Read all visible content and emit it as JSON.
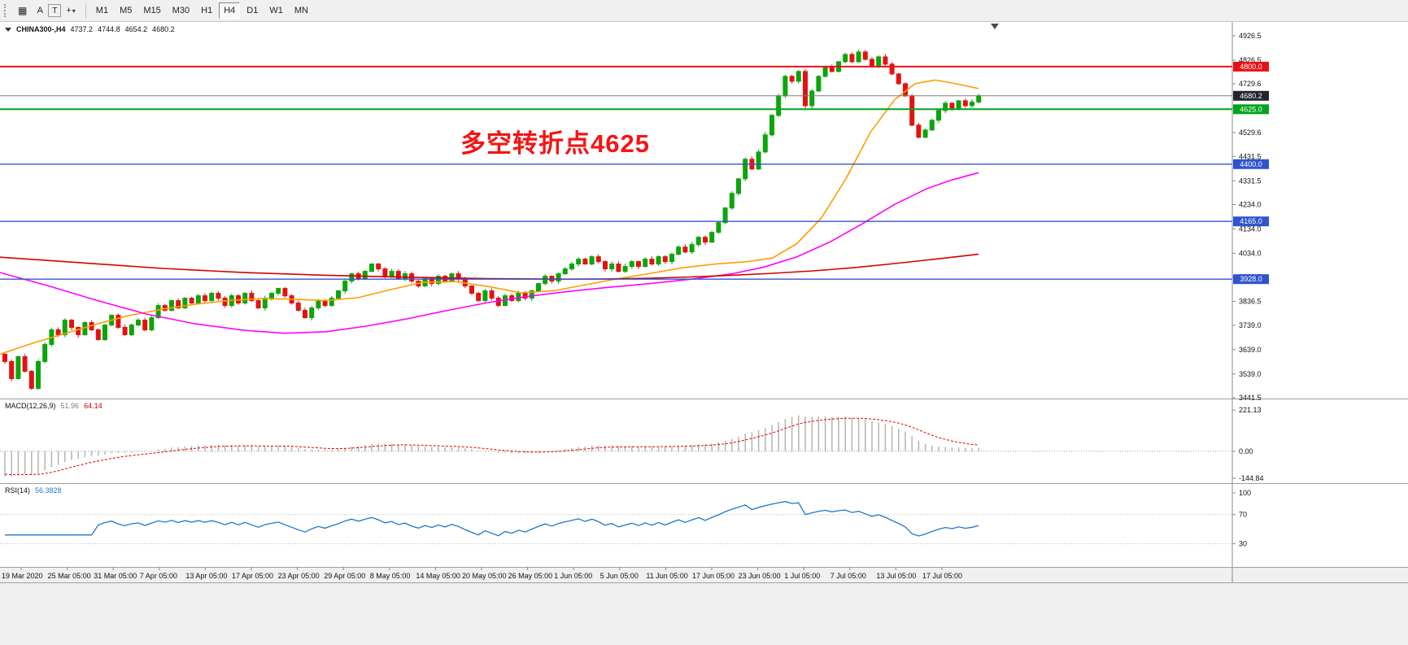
{
  "toolbar": {
    "tools": {
      "charts": "▦",
      "arrow": "A",
      "text": "T",
      "crosshair": "+",
      "dropdown": "▾"
    },
    "timeframes": [
      "M1",
      "M5",
      "M15",
      "M30",
      "H1",
      "H4",
      "D1",
      "W1",
      "MN"
    ],
    "selected_timeframe": "H4"
  },
  "header": {
    "symbol": "CHINA300-,H4",
    "open": "4737.2",
    "high": "4744.8",
    "low": "4654.2",
    "close": "4680.2"
  },
  "annotation": {
    "text": "多空转折点4625",
    "color": "#f51414"
  },
  "indicators": {
    "macd": {
      "label": "MACD(12,26,9)",
      "value_main": "51.96",
      "value_signal": "64.14",
      "axis_labels": [
        "221.13",
        "0.00",
        "-144.84"
      ]
    },
    "rsi": {
      "label": "RSI(14)",
      "value": "56.3828",
      "axis_labels": [
        "100",
        "70",
        "30"
      ]
    }
  },
  "y_axis_labels": [
    "4926.5",
    "4826.5",
    "4729.6",
    "4631.5",
    "4529.6",
    "4431.5",
    "4331.5",
    "4234.0",
    "4134.0",
    "4034.0",
    "3936.5",
    "3836.5",
    "3739.0",
    "3639.0",
    "3539.0",
    "3441.5"
  ],
  "x_axis_labels": [
    "19 Mar 2020",
    "25 Mar 05:00",
    "31 Mar 05:00",
    "7 Apr 05:00",
    "13 Apr 05:00",
    "17 Apr 05:00",
    "23 Apr 05:00",
    "29 Apr 05:00",
    "8 May 05:00",
    "14 May 05:00",
    "20 May 05:00",
    "26 May 05:00",
    "1 Jun 05:00",
    "5 Jun 05:00",
    "11 Jun 05:00",
    "17 Jun 05:00",
    "23 Jun 05:00",
    "1 Jul 05:00",
    "7 Jul 05:00",
    "13 Jul 05:00",
    "17 Jul 05:00"
  ],
  "candle_colors": {
    "up": "#0ba50b",
    "down": "#e31212"
  },
  "chart_data": {
    "type": "candlestick",
    "symbol": "CHINA300-",
    "timeframe": "H4",
    "ylim": [
      3441.5,
      4926.5
    ],
    "open_first": 3620,
    "closes": [
      3590,
      3520,
      3610,
      3550,
      3480,
      3590,
      3660,
      3720,
      3700,
      3760,
      3730,
      3700,
      3750,
      3720,
      3680,
      3740,
      3780,
      3730,
      3700,
      3740,
      3760,
      3720,
      3770,
      3820,
      3800,
      3840,
      3810,
      3850,
      3830,
      3860,
      3840,
      3870,
      3850,
      3820,
      3860,
      3830,
      3870,
      3840,
      3810,
      3850,
      3870,
      3890,
      3860,
      3830,
      3800,
      3770,
      3810,
      3840,
      3820,
      3850,
      3880,
      3920,
      3950,
      3930,
      3960,
      3990,
      3970,
      3940,
      3960,
      3930,
      3950,
      3920,
      3900,
      3930,
      3910,
      3940,
      3920,
      3950,
      3930,
      3900,
      3870,
      3840,
      3880,
      3850,
      3820,
      3860,
      3840,
      3870,
      3850,
      3880,
      3910,
      3940,
      3920,
      3950,
      3970,
      3990,
      4010,
      3990,
      4020,
      4000,
      3970,
      3990,
      3960,
      3980,
      4000,
      3980,
      4010,
      3990,
      4020,
      4000,
      4030,
      4060,
      4040,
      4070,
      4100,
      4080,
      4120,
      4160,
      4220,
      4280,
      4340,
      4420,
      4380,
      4450,
      4520,
      4600,
      4680,
      4760,
      4740,
      4780,
      4640,
      4700,
      4760,
      4800,
      4780,
      4820,
      4850,
      4820,
      4860,
      4830,
      4800,
      4840,
      4810,
      4770,
      4730,
      4680,
      4560,
      4510,
      4540,
      4580,
      4620,
      4650,
      4630,
      4660,
      4640,
      4655,
      4680.2
    ],
    "hlines": [
      {
        "price": 4800.0,
        "label": "4800.0",
        "color": "#e81212",
        "weight": 2
      },
      {
        "price": 4625.0,
        "label": "4625.0",
        "color": "#00a41c",
        "weight": 2
      },
      {
        "price": 4400.0,
        "label": "4400.0",
        "color": "#2f55cc",
        "weight": 1.4
      },
      {
        "price": 4165.0,
        "label": "4165.0",
        "color": "#2f55cc",
        "weight": 1.4
      },
      {
        "price": 3928.0,
        "label": "3928.0",
        "color": "#2f55cc",
        "weight": 1.4
      }
    ],
    "current_price": {
      "value": 4680.2,
      "label": "4680.2",
      "line_color": "#7a7a7a",
      "label_bg": "#22252c"
    },
    "moving_averages": [
      {
        "name": "fast",
        "color": "#ff9c00",
        "points": [
          [
            0,
            3620
          ],
          [
            40,
            3665
          ],
          [
            80,
            3705
          ],
          [
            120,
            3745
          ],
          [
            160,
            3780
          ],
          [
            200,
            3805
          ],
          [
            240,
            3825
          ],
          [
            280,
            3840
          ],
          [
            320,
            3848
          ],
          [
            360,
            3846
          ],
          [
            400,
            3840
          ],
          [
            440,
            3852
          ],
          [
            480,
            3885
          ],
          [
            520,
            3915
          ],
          [
            560,
            3918
          ],
          [
            600,
            3898
          ],
          [
            640,
            3872
          ],
          [
            680,
            3880
          ],
          [
            720,
            3905
          ],
          [
            760,
            3930
          ],
          [
            800,
            3952
          ],
          [
            840,
            3975
          ],
          [
            880,
            3990
          ],
          [
            920,
            4000
          ],
          [
            950,
            4015
          ],
          [
            980,
            4075
          ],
          [
            1010,
            4180
          ],
          [
            1040,
            4340
          ],
          [
            1070,
            4530
          ],
          [
            1100,
            4665
          ],
          [
            1125,
            4730
          ],
          [
            1150,
            4745
          ],
          [
            1175,
            4730
          ],
          [
            1203,
            4710
          ]
        ]
      },
      {
        "name": "medium",
        "color": "#ff00ff",
        "points": [
          [
            0,
            3955
          ],
          [
            60,
            3900
          ],
          [
            120,
            3840
          ],
          [
            180,
            3785
          ],
          [
            240,
            3745
          ],
          [
            300,
            3718
          ],
          [
            350,
            3706
          ],
          [
            400,
            3712
          ],
          [
            450,
            3735
          ],
          [
            500,
            3765
          ],
          [
            550,
            3800
          ],
          [
            600,
            3832
          ],
          [
            650,
            3858
          ],
          [
            700,
            3878
          ],
          [
            750,
            3895
          ],
          [
            800,
            3910
          ],
          [
            850,
            3928
          ],
          [
            900,
            3950
          ],
          [
            940,
            3978
          ],
          [
            980,
            4020
          ],
          [
            1020,
            4080
          ],
          [
            1060,
            4155
          ],
          [
            1100,
            4235
          ],
          [
            1140,
            4300
          ],
          [
            1170,
            4335
          ],
          [
            1203,
            4365
          ]
        ]
      },
      {
        "name": "slow",
        "color": "#d40000",
        "points": [
          [
            0,
            4018
          ],
          [
            100,
            3995
          ],
          [
            200,
            3972
          ],
          [
            300,
            3955
          ],
          [
            400,
            3944
          ],
          [
            500,
            3936
          ],
          [
            600,
            3930
          ],
          [
            700,
            3928
          ],
          [
            750,
            3929
          ],
          [
            800,
            3932
          ],
          [
            850,
            3937
          ],
          [
            900,
            3944
          ],
          [
            950,
            3952
          ],
          [
            1000,
            3962
          ],
          [
            1050,
            3975
          ],
          [
            1100,
            3992
          ],
          [
            1150,
            4010
          ],
          [
            1203,
            4030
          ]
        ]
      }
    ],
    "macd": {
      "fast": 12,
      "slow": 26,
      "signal": 9,
      "ylim": [
        -144.84,
        221.13
      ],
      "hist_color": "#b4b4b4",
      "signal_color": "#e00000"
    },
    "rsi": {
      "period": 14,
      "ylim": [
        0,
        100
      ],
      "levels": [
        70,
        30
      ],
      "color": "#1e78c8"
    }
  }
}
